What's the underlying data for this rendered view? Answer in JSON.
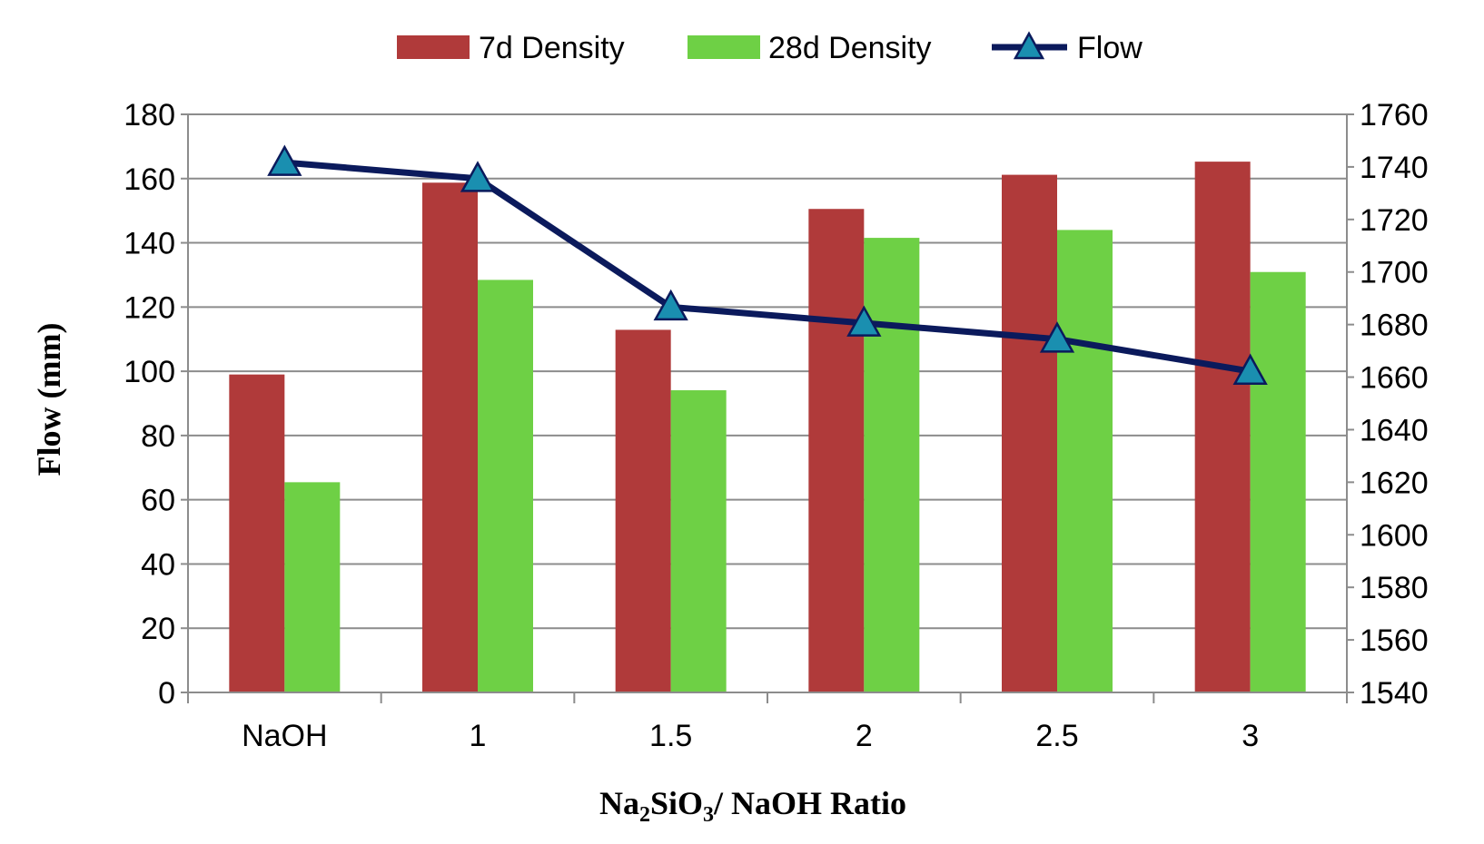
{
  "chart_data": {
    "type": "bar+line",
    "categories": [
      "NaOH",
      "1",
      "1.5",
      "2",
      "2.5",
      "3"
    ],
    "series": [
      {
        "name": "7d Density",
        "kind": "bar",
        "axis": "right",
        "color": "#b03a3a",
        "values": [
          1661,
          1734,
          1678,
          1724,
          1737,
          1742
        ]
      },
      {
        "name": "28d Density",
        "kind": "bar",
        "axis": "right",
        "color": "#6ed045",
        "values": [
          1620,
          1697,
          1655,
          1713,
          1716,
          1700
        ]
      },
      {
        "name": "Flow",
        "kind": "line",
        "axis": "left",
        "color": "#0b1a5c",
        "marker_color": "#1a8fb0",
        "values": [
          165,
          160,
          120,
          115,
          110,
          100
        ]
      }
    ],
    "ylabel": "Flow (mm)",
    "xlabel_parts": [
      "Na",
      "2",
      "SiO",
      "3",
      "/ NaOH Ratio"
    ],
    "y_left": {
      "min": 0,
      "max": 180,
      "step": 20,
      "ticks": [
        "0",
        "20",
        "40",
        "60",
        "80",
        "100",
        "120",
        "140",
        "160",
        "180"
      ]
    },
    "y_right": {
      "min": 1540,
      "max": 1760,
      "step": 20,
      "ticks": [
        "1540",
        "1560",
        "1580",
        "1600",
        "1620",
        "1640",
        "1660",
        "1680",
        "1700",
        "1720",
        "1740",
        "1760"
      ]
    },
    "grid": true,
    "legend_position": "top"
  }
}
